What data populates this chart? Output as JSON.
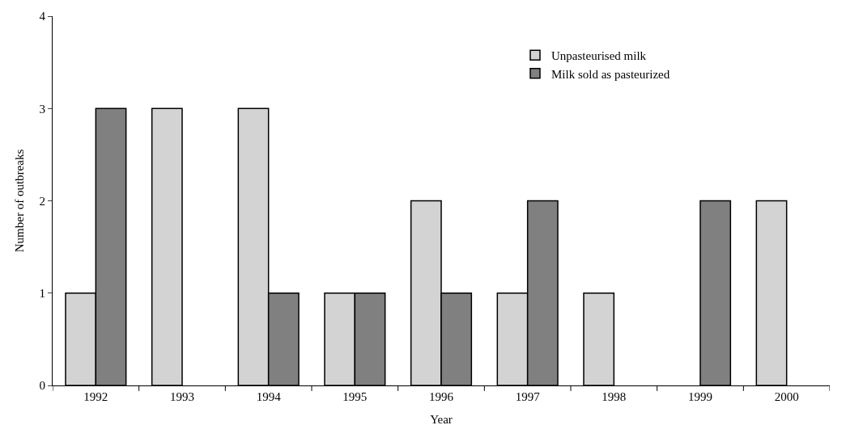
{
  "chart_data": {
    "type": "bar",
    "xlabel": "Year",
    "ylabel": "Number of outbreaks",
    "categories": [
      "1992",
      "1993",
      "1994",
      "1995",
      "1996",
      "1997",
      "1998",
      "1999",
      "2000"
    ],
    "series": [
      {
        "name": "Unpasteurised milk",
        "color": "#d3d3d3",
        "values": [
          1,
          3,
          3,
          1,
          2,
          1,
          1,
          null,
          2
        ]
      },
      {
        "name": "Milk sold as pasteurized",
        "color": "#808080",
        "values": [
          3,
          null,
          1,
          1,
          1,
          2,
          null,
          2,
          null
        ]
      }
    ],
    "ylim": [
      0,
      4
    ],
    "yticks": [
      0,
      1,
      2,
      3,
      4
    ],
    "legend": "top right"
  }
}
